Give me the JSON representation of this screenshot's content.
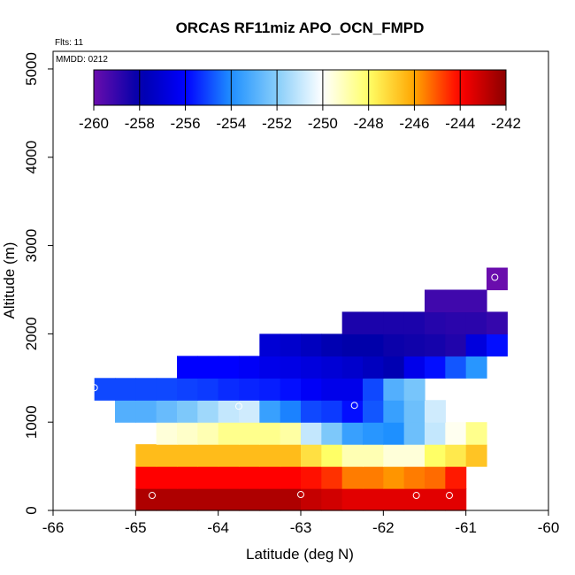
{
  "chart_data": {
    "type": "heatmap",
    "title": "ORCAS RF11miz APO_OCN_FMPD",
    "flights_note": "Flts: 11",
    "date_note": "MMDD: 0212",
    "xlabel": "Latitude (deg N)",
    "ylabel": "Altitude (m)",
    "xlim": [
      -66,
      -60
    ],
    "ylim": [
      0,
      5200
    ],
    "xticks": [
      "-66",
      "-65",
      "-64",
      "-63",
      "-62",
      "-61",
      "-60"
    ],
    "yticks": [
      "0",
      "1000",
      "2000",
      "3000",
      "4000",
      "5000"
    ],
    "colorbar": {
      "range": [
        -260,
        -242
      ],
      "ticks": [
        "-260",
        "-258",
        "-256",
        "-254",
        "-252",
        "-250",
        "-248",
        "-246",
        "-244",
        "-242"
      ],
      "stops": [
        "#6a0dad",
        "#0000aa",
        "#0000ff",
        "#1e90ff",
        "#87cefa",
        "#ffffff",
        "#ffff66",
        "#ffa500",
        "#ff0000",
        "#8b0000"
      ]
    },
    "cell_height_m": 250,
    "cell_width_deg": 0.25,
    "rows": [
      {
        "alt": 0,
        "lat_start": -65.0,
        "values": [
          -242.6,
          -242.6,
          -242.6,
          -242.6,
          -242.6,
          -242.6,
          -242.6,
          -242.6,
          -243.0,
          -243.2,
          -243.5,
          -243.5,
          -243.5,
          -243.5,
          -243.5,
          -243.5
        ]
      },
      {
        "alt": 250,
        "lat_start": -65.0,
        "values": [
          -244.0,
          -244.0,
          -244.0,
          -244.0,
          -244.0,
          -244.0,
          -244.0,
          -244.0,
          -244.2,
          -244.6,
          -245.5,
          -245.5,
          -245.8,
          -245.5,
          -245.3,
          -244.3
        ]
      },
      {
        "alt": 500,
        "lat_start": -65.0,
        "values": [
          -246.5,
          -246.5,
          -246.5,
          -246.5,
          -246.5,
          -246.5,
          -246.5,
          -246.5,
          -247.3,
          -248.0,
          -249.0,
          -249.0,
          -249.5,
          -249.5,
          -248.0,
          -247.5,
          -246.7
        ]
      },
      {
        "alt": 750,
        "lat_start": -64.75,
        "values": [
          -249.5,
          -249.3,
          -249.0,
          -248.5,
          -248.5,
          -248.5,
          -248.8,
          -251.0,
          -252.2,
          -253.5,
          -253.8,
          -254.0,
          -252.5,
          -251.0,
          -249.8,
          -248.5
        ]
      },
      {
        "alt": 1000,
        "lat_start": -65.25,
        "values": [
          -253.0,
          -253.0,
          -252.6,
          -252.2,
          -251.6,
          -251.0,
          -250.8,
          -253.5,
          -254.2,
          -255.0,
          -255.2,
          -255.8,
          -254.8,
          -253.5,
          -252.5,
          -250.8
        ]
      },
      {
        "alt": 1250,
        "lat_start": -65.5,
        "values": [
          -255.0,
          -255.0,
          -255.0,
          -255.0,
          -255.1,
          -255.2,
          -255.4,
          -255.5,
          -255.6,
          -255.8,
          -256.2,
          -256.5,
          -256.5,
          -255.0,
          -253.0,
          -252.3
        ]
      },
      {
        "alt": 1500,
        "lat_start": -64.5,
        "values": [
          -256.0,
          -256.0,
          -256.0,
          -256.2,
          -256.5,
          -256.6,
          -256.8,
          -257.0,
          -257.2,
          -257.5,
          -257.8,
          -256.5,
          -255.8,
          -254.8,
          -253.8
        ]
      },
      {
        "alt": 1750,
        "lat_start": -63.5,
        "values": [
          -257.0,
          -257.2,
          -257.5,
          -257.8,
          -258.0,
          -258.0,
          -258.2,
          -258.3,
          -258.4,
          -258.6,
          -256.8,
          -255.8
        ]
      },
      {
        "alt": 2000,
        "lat_start": -62.5,
        "values": [
          -258.5,
          -258.5,
          -258.5,
          -258.5,
          -258.7,
          -258.8,
          -258.8,
          -259.0
        ]
      },
      {
        "alt": 2250,
        "lat_start": -61.5,
        "values": [
          -259.2,
          -259.2,
          -259.2
        ]
      },
      {
        "alt": 2500,
        "lat_start": -60.75,
        "values": [
          -260.0
        ]
      }
    ],
    "points": [
      {
        "lat": -65.5,
        "alt": 1390
      },
      {
        "lat": -64.8,
        "alt": 170
      },
      {
        "lat": -63.75,
        "alt": 1180
      },
      {
        "lat": -63.0,
        "alt": 180
      },
      {
        "lat": -62.35,
        "alt": 1190
      },
      {
        "lat": -61.6,
        "alt": 170
      },
      {
        "lat": -61.2,
        "alt": 170
      },
      {
        "lat": -60.65,
        "alt": 2640
      }
    ]
  }
}
